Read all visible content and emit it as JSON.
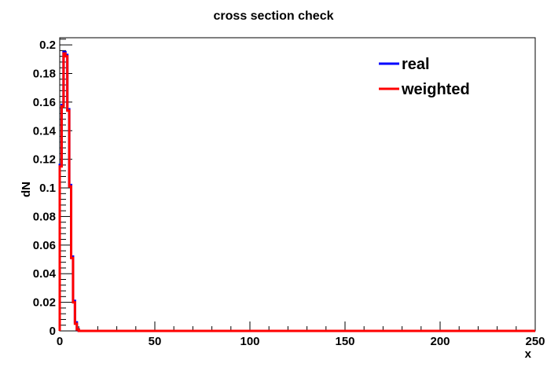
{
  "chart_data": {
    "type": "line",
    "title": "cross section check",
    "xlabel": "x",
    "ylabel": "dN",
    "xlim": [
      0,
      250
    ],
    "ylim": [
      0,
      0.205
    ],
    "x_ticks": [
      0,
      50,
      100,
      150,
      200,
      250
    ],
    "y_ticks": [
      0,
      0.02,
      0.04,
      0.06,
      0.08,
      0.1,
      0.12,
      0.14,
      0.16,
      0.18,
      0.2
    ],
    "y_tick_labels": [
      "0",
      "0.02",
      "0.04",
      "0.06",
      "0.08",
      "0.1",
      "0.12",
      "0.14",
      "0.16",
      "0.18",
      "0.2"
    ],
    "x_tick_labels": [
      "0",
      "50",
      "100",
      "150",
      "200",
      "250"
    ],
    "grid": false,
    "legend_position": "top-right",
    "bin_edges": [
      0,
      1,
      2,
      3,
      4,
      5,
      6,
      7,
      8,
      9,
      10,
      250
    ],
    "series": [
      {
        "name": "real",
        "color": "#0000ff",
        "values": [
          0.116,
          0.158,
          0.195,
          0.193,
          0.155,
          0.102,
          0.052,
          0.021,
          0.006,
          0.001,
          0.0
        ]
      },
      {
        "name": "weighted",
        "color": "#ff0000",
        "values": [
          0.115,
          0.157,
          0.194,
          0.192,
          0.154,
          0.101,
          0.051,
          0.02,
          0.005,
          0.001,
          0.0
        ]
      }
    ]
  }
}
